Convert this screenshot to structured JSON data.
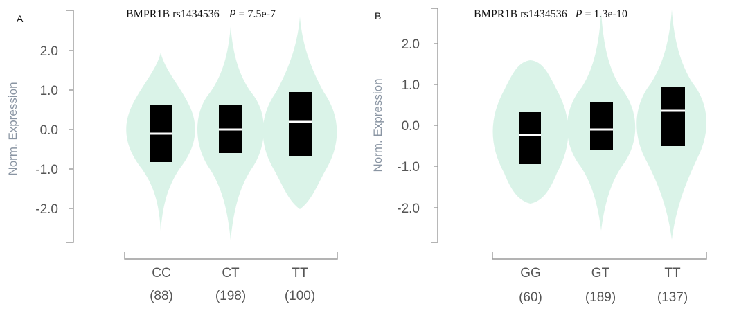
{
  "colors": {
    "violin": "#daf3e8",
    "box": "#000000",
    "median": "#ffffff",
    "axis": "#9a9a9a",
    "ylabel": "#8a95a3"
  },
  "chart_data": [
    {
      "type": "violin",
      "panel": "A",
      "title_gene": "BMPR1B",
      "title_snp": "rs1434536",
      "title_p_symbol": "P",
      "title_p_value": "= 7.5e-7",
      "ylabel": "Norm. Expression",
      "ylim": [
        -2.85,
        2.95
      ],
      "yticks": [
        2.0,
        1.0,
        0.0,
        -1.0,
        -2.0
      ],
      "ytick_labels": [
        "2.0",
        "1.0",
        "0.0",
        "-1.0",
        "-2.0"
      ],
      "categories": [
        "CC",
        "CT",
        "TT"
      ],
      "counts": [
        "(88)",
        "(198)",
        "(100)"
      ],
      "groups": [
        {
          "name": "CC",
          "min": -2.55,
          "max": 1.95,
          "q1": -0.8,
          "median": -0.1,
          "q3": 0.62
        },
        {
          "name": "CT",
          "min": -2.75,
          "max": 2.6,
          "q1": -0.58,
          "median": 0.0,
          "q3": 0.62
        },
        {
          "name": "TT",
          "min": -1.98,
          "max": 2.85,
          "q1": -0.67,
          "median": 0.2,
          "q3": 0.92
        }
      ]
    },
    {
      "type": "violin",
      "panel": "B",
      "title_gene": "BMPR1B",
      "title_snp": "rs1434536",
      "title_p_symbol": "P",
      "title_p_value": "= 1.3e-10",
      "ylabel": "Norm. Expression",
      "ylim": [
        -2.85,
        2.95
      ],
      "yticks": [
        2.0,
        1.0,
        0.0,
        -1.0,
        -2.0
      ],
      "ytick_labels": [
        "2.0",
        "1.0",
        "0.0",
        "-1.0",
        "-2.0"
      ],
      "categories": [
        "GG",
        "GT",
        "TT"
      ],
      "counts": [
        "(60)",
        "(189)",
        "(137)"
      ],
      "groups": [
        {
          "name": "GG",
          "min": -1.9,
          "max": 1.58,
          "q1": -0.93,
          "median": -0.25,
          "q3": 0.32
        },
        {
          "name": "GT",
          "min": -2.55,
          "max": 2.75,
          "q1": -0.6,
          "median": -0.1,
          "q3": 0.58
        },
        {
          "name": "TT",
          "min": -2.75,
          "max": 2.8,
          "q1": -0.5,
          "median": 0.35,
          "q3": 0.92
        }
      ]
    }
  ]
}
